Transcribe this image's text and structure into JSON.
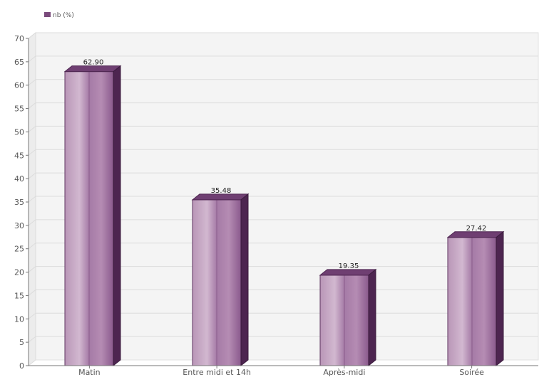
{
  "chart_data": {
    "type": "bar",
    "style": "3d",
    "categories": [
      "Matin",
      "Entre midi et 14h",
      "Après-midi",
      "Soirée"
    ],
    "series": [
      {
        "name": "nb (%)",
        "values": [
          62.9,
          35.48,
          19.35,
          27.42
        ],
        "labels": [
          "62.90",
          "35.48",
          "19.35",
          "27.42"
        ]
      }
    ],
    "ylim": [
      0,
      70
    ],
    "yticks": [
      0,
      5,
      10,
      15,
      20,
      25,
      30,
      35,
      40,
      45,
      50,
      55,
      60,
      65,
      70
    ],
    "grid": true,
    "legend_position": "top-left",
    "colors": {
      "bar_front_light": "#c8a9c6",
      "bar_front_dark": "#8a5a8d",
      "bar_top": "#6f3f72",
      "bar_side": "#4d2550",
      "legend_swatch": "#7a4a7c",
      "plot_bg": "#f4f4f4",
      "grid": "#dcdcdc",
      "axis": "#777777"
    }
  }
}
